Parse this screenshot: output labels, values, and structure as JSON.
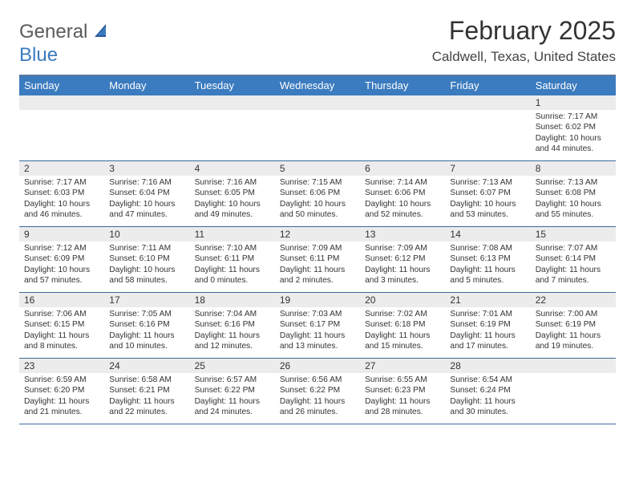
{
  "logo": {
    "general": "General",
    "blue": "Blue"
  },
  "title": "February 2025",
  "location": "Caldwell, Texas, United States",
  "header_color": "#3b7bbf",
  "border_color": "#3b6a9a",
  "daybar_color": "#ececec",
  "background_color": "#ffffff",
  "text_color": "#333333",
  "title_fontsize": 32,
  "location_fontsize": 17,
  "header_fontsize": 13,
  "daynum_fontsize": 12,
  "cell_fontsize": 10.2,
  "day_headers": [
    "Sunday",
    "Monday",
    "Tuesday",
    "Wednesday",
    "Thursday",
    "Friday",
    "Saturday"
  ],
  "weeks": [
    {
      "nums": [
        "",
        "",
        "",
        "",
        "",
        "",
        "1"
      ],
      "cells": [
        {
          "sunrise": "",
          "sunset": "",
          "daylight": ""
        },
        {
          "sunrise": "",
          "sunset": "",
          "daylight": ""
        },
        {
          "sunrise": "",
          "sunset": "",
          "daylight": ""
        },
        {
          "sunrise": "",
          "sunset": "",
          "daylight": ""
        },
        {
          "sunrise": "",
          "sunset": "",
          "daylight": ""
        },
        {
          "sunrise": "",
          "sunset": "",
          "daylight": ""
        },
        {
          "sunrise": "Sunrise: 7:17 AM",
          "sunset": "Sunset: 6:02 PM",
          "daylight": "Daylight: 10 hours and 44 minutes."
        }
      ]
    },
    {
      "nums": [
        "2",
        "3",
        "4",
        "5",
        "6",
        "7",
        "8"
      ],
      "cells": [
        {
          "sunrise": "Sunrise: 7:17 AM",
          "sunset": "Sunset: 6:03 PM",
          "daylight": "Daylight: 10 hours and 46 minutes."
        },
        {
          "sunrise": "Sunrise: 7:16 AM",
          "sunset": "Sunset: 6:04 PM",
          "daylight": "Daylight: 10 hours and 47 minutes."
        },
        {
          "sunrise": "Sunrise: 7:16 AM",
          "sunset": "Sunset: 6:05 PM",
          "daylight": "Daylight: 10 hours and 49 minutes."
        },
        {
          "sunrise": "Sunrise: 7:15 AM",
          "sunset": "Sunset: 6:06 PM",
          "daylight": "Daylight: 10 hours and 50 minutes."
        },
        {
          "sunrise": "Sunrise: 7:14 AM",
          "sunset": "Sunset: 6:06 PM",
          "daylight": "Daylight: 10 hours and 52 minutes."
        },
        {
          "sunrise": "Sunrise: 7:13 AM",
          "sunset": "Sunset: 6:07 PM",
          "daylight": "Daylight: 10 hours and 53 minutes."
        },
        {
          "sunrise": "Sunrise: 7:13 AM",
          "sunset": "Sunset: 6:08 PM",
          "daylight": "Daylight: 10 hours and 55 minutes."
        }
      ]
    },
    {
      "nums": [
        "9",
        "10",
        "11",
        "12",
        "13",
        "14",
        "15"
      ],
      "cells": [
        {
          "sunrise": "Sunrise: 7:12 AM",
          "sunset": "Sunset: 6:09 PM",
          "daylight": "Daylight: 10 hours and 57 minutes."
        },
        {
          "sunrise": "Sunrise: 7:11 AM",
          "sunset": "Sunset: 6:10 PM",
          "daylight": "Daylight: 10 hours and 58 minutes."
        },
        {
          "sunrise": "Sunrise: 7:10 AM",
          "sunset": "Sunset: 6:11 PM",
          "daylight": "Daylight: 11 hours and 0 minutes."
        },
        {
          "sunrise": "Sunrise: 7:09 AM",
          "sunset": "Sunset: 6:11 PM",
          "daylight": "Daylight: 11 hours and 2 minutes."
        },
        {
          "sunrise": "Sunrise: 7:09 AM",
          "sunset": "Sunset: 6:12 PM",
          "daylight": "Daylight: 11 hours and 3 minutes."
        },
        {
          "sunrise": "Sunrise: 7:08 AM",
          "sunset": "Sunset: 6:13 PM",
          "daylight": "Daylight: 11 hours and 5 minutes."
        },
        {
          "sunrise": "Sunrise: 7:07 AM",
          "sunset": "Sunset: 6:14 PM",
          "daylight": "Daylight: 11 hours and 7 minutes."
        }
      ]
    },
    {
      "nums": [
        "16",
        "17",
        "18",
        "19",
        "20",
        "21",
        "22"
      ],
      "cells": [
        {
          "sunrise": "Sunrise: 7:06 AM",
          "sunset": "Sunset: 6:15 PM",
          "daylight": "Daylight: 11 hours and 8 minutes."
        },
        {
          "sunrise": "Sunrise: 7:05 AM",
          "sunset": "Sunset: 6:16 PM",
          "daylight": "Daylight: 11 hours and 10 minutes."
        },
        {
          "sunrise": "Sunrise: 7:04 AM",
          "sunset": "Sunset: 6:16 PM",
          "daylight": "Daylight: 11 hours and 12 minutes."
        },
        {
          "sunrise": "Sunrise: 7:03 AM",
          "sunset": "Sunset: 6:17 PM",
          "daylight": "Daylight: 11 hours and 13 minutes."
        },
        {
          "sunrise": "Sunrise: 7:02 AM",
          "sunset": "Sunset: 6:18 PM",
          "daylight": "Daylight: 11 hours and 15 minutes."
        },
        {
          "sunrise": "Sunrise: 7:01 AM",
          "sunset": "Sunset: 6:19 PM",
          "daylight": "Daylight: 11 hours and 17 minutes."
        },
        {
          "sunrise": "Sunrise: 7:00 AM",
          "sunset": "Sunset: 6:19 PM",
          "daylight": "Daylight: 11 hours and 19 minutes."
        }
      ]
    },
    {
      "nums": [
        "23",
        "24",
        "25",
        "26",
        "27",
        "28",
        ""
      ],
      "cells": [
        {
          "sunrise": "Sunrise: 6:59 AM",
          "sunset": "Sunset: 6:20 PM",
          "daylight": "Daylight: 11 hours and 21 minutes."
        },
        {
          "sunrise": "Sunrise: 6:58 AM",
          "sunset": "Sunset: 6:21 PM",
          "daylight": "Daylight: 11 hours and 22 minutes."
        },
        {
          "sunrise": "Sunrise: 6:57 AM",
          "sunset": "Sunset: 6:22 PM",
          "daylight": "Daylight: 11 hours and 24 minutes."
        },
        {
          "sunrise": "Sunrise: 6:56 AM",
          "sunset": "Sunset: 6:22 PM",
          "daylight": "Daylight: 11 hours and 26 minutes."
        },
        {
          "sunrise": "Sunrise: 6:55 AM",
          "sunset": "Sunset: 6:23 PM",
          "daylight": "Daylight: 11 hours and 28 minutes."
        },
        {
          "sunrise": "Sunrise: 6:54 AM",
          "sunset": "Sunset: 6:24 PM",
          "daylight": "Daylight: 11 hours and 30 minutes."
        },
        {
          "sunrise": "",
          "sunset": "",
          "daylight": ""
        }
      ]
    }
  ]
}
